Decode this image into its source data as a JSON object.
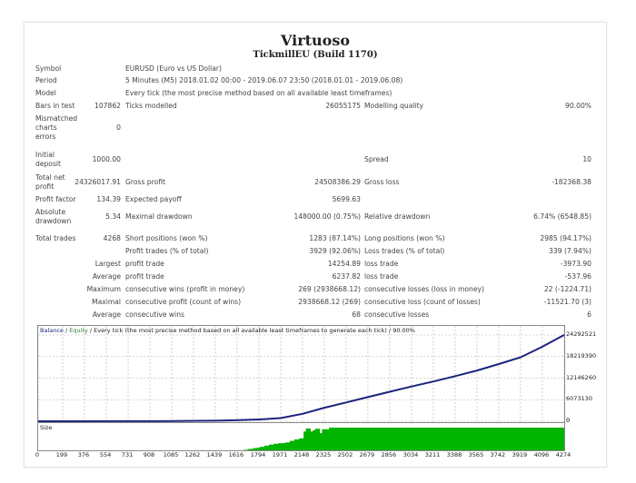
{
  "title": "Virtuoso",
  "subtitle": "TickmillEU  (Build 1170)",
  "info": {
    "symbol_label": "Symbol",
    "symbol_value": "EURUSD (Euro vs US Dollar)",
    "period_label": "Period",
    "period_value": "5 Minutes (M5) 2018.01.02 00:00 - 2019.06.07 23:50 (2018.01.01 - 2019.06.08)",
    "model_label": "Model",
    "model_value": "Every tick (the most precise method based on all available least timeframes)",
    "bars_label": "Bars in test",
    "bars_value": "107862",
    "ticks_label": "Ticks modelled",
    "ticks_value": "26055175",
    "quality_label": "Modelling quality",
    "quality_value": "90.00%",
    "mismatch_label_1": "Mismatched",
    "mismatch_label_2": "charts",
    "mismatch_label_3": "errors",
    "mismatch_value": "0",
    "deposit_label_1": "Initial",
    "deposit_label_2": "deposit",
    "deposit_value": "1000.00",
    "spread_label": "Spread",
    "spread_value": "10",
    "netprofit_label_1": "Total net",
    "netprofit_label_2": "profit",
    "netprofit_value": "24326017.91",
    "grossprofit_label": "Gross profit",
    "grossprofit_value": "24508386.29",
    "grossloss_label": "Gross loss",
    "grossloss_value": "-182368.38",
    "pf_label": "Profit factor",
    "pf_value": "134.39",
    "payoff_label": "Expected payoff",
    "payoff_value": "5699.63",
    "absdd_label_1": "Absolute",
    "absdd_label_2": "drawdown",
    "absdd_value": "5.34",
    "maxdd_label": "Maximal drawdown",
    "maxdd_value": "148000.00 (0.75%)",
    "reldd_label": "Relative drawdown",
    "reldd_value": "6.74% (6548.85)",
    "trades_label": "Total trades",
    "trades_value": "4268",
    "short_label": "Short positions (won %)",
    "short_value": "1283 (87.14%)",
    "long_label": "Long positions (won %)",
    "long_value": "2985 (94.17%)",
    "ptrades_label": "Profit trades (% of total)",
    "ptrades_value": "3929 (92.06%)",
    "ltrades_label": "Loss trades (% of total)",
    "ltrades_value": "339 (7.94%)",
    "largest_label": "Largest",
    "lp_label": "profit trade",
    "lp_value": "14254.89",
    "ll_label": "loss trade",
    "ll_value": "-3973.90",
    "average_label": "Average",
    "ap_label": "profit trade",
    "ap_value": "6237.82",
    "al_label": "loss trade",
    "al_value": "-537.96",
    "maximum_label": "Maximum",
    "mcw_label": "consecutive wins (profit in money)",
    "mcw_value": "269 (2938668.12)",
    "mcl_label": "consecutive losses (loss in money)",
    "mcl_value": "22 (-1224.71)",
    "maximal_label": "Maximal",
    "mcp_label": "consecutive profit (count of wins)",
    "mcp_value": "2938668.12 (269)",
    "mclc_label": "consecutive loss (count of losses)",
    "mclc_value": "-11521.70 (3)",
    "average2_label": "Average",
    "acw_label": "consecutive wins",
    "acw_value": "68",
    "acl_label": "consecutive losses",
    "acl_value": "6"
  },
  "chart": {
    "legend_balance": "Balance",
    "legend_sep": " / ",
    "legend_equity": "Equity",
    "legend_rest": " / Every tick (the most precise method based on all available least timeframes to generate each tick) / 90.00%",
    "size_label": "Size",
    "colors": {
      "balance": "#1a237e",
      "equity": "#2e7d32",
      "size": "#00b400",
      "grid": "#b0b0b0"
    }
  },
  "chart_data": {
    "type": "line",
    "title": "",
    "xlabel": "",
    "ylabel": "",
    "y_ticks": [
      "24292521",
      "18219390",
      "12146260",
      "6073130",
      "0"
    ],
    "x_ticks": [
      "0",
      "199",
      "376",
      "554",
      "731",
      "908",
      "1085",
      "1262",
      "1439",
      "1616",
      "1794",
      "1971",
      "2148",
      "2325",
      "2502",
      "2679",
      "2856",
      "3034",
      "3211",
      "3388",
      "3565",
      "3742",
      "3919",
      "4096",
      "4274"
    ],
    "ylim": [
      0,
      24292521
    ],
    "xlim": [
      0,
      4274
    ],
    "series": [
      {
        "name": "Balance",
        "x": [
          0,
          1000,
          1500,
          1800,
          1971,
          2148,
          2325,
          2502,
          2679,
          2856,
          3034,
          3211,
          3388,
          3565,
          3742,
          3919,
          4096,
          4274
        ],
        "y": [
          1000,
          30000,
          200000,
          500000,
          900000,
          2100000,
          3800000,
          5300000,
          6800000,
          8300000,
          9800000,
          11200000,
          12700000,
          14300000,
          16100000,
          18000000,
          21000000,
          24326017
        ]
      }
    ]
  }
}
